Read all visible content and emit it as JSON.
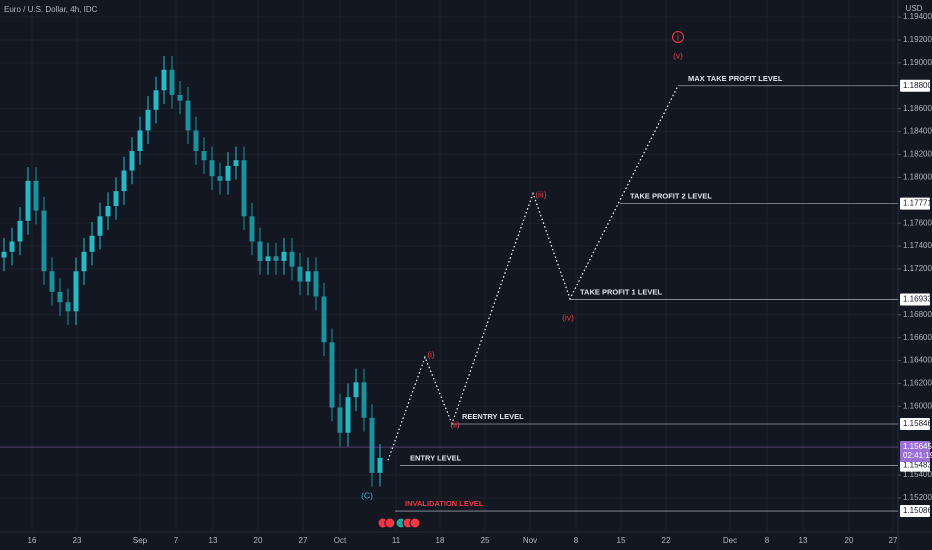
{
  "chart_data": {
    "type": "candlestick",
    "title": "Euro / U.S. Dollar, 4h, IDC",
    "y_axis_label": "USD",
    "ylim": [
      1.14903,
      1.19549
    ],
    "yticks": [
      {
        "value": 1.194,
        "label": "1.19400"
      },
      {
        "value": 1.192,
        "label": "1.19200"
      },
      {
        "value": 1.19,
        "label": "1.19000"
      },
      {
        "value": 1.186,
        "label": "1.18600"
      },
      {
        "value": 1.184,
        "label": "1.18400"
      },
      {
        "value": 1.182,
        "label": "1.18200"
      },
      {
        "value": 1.18,
        "label": "1.18000"
      },
      {
        "value": 1.176,
        "label": "1.17600"
      },
      {
        "value": 1.174,
        "label": "1.17400"
      },
      {
        "value": 1.172,
        "label": "1.17200"
      },
      {
        "value": 1.168,
        "label": "1.16800"
      },
      {
        "value": 1.166,
        "label": "1.16600"
      },
      {
        "value": 1.164,
        "label": "1.16400"
      },
      {
        "value": 1.162,
        "label": "1.16200"
      },
      {
        "value": 1.16,
        "label": "1.16000"
      },
      {
        "value": 1.154,
        "label": "1.15400"
      },
      {
        "value": 1.152,
        "label": "1.15200"
      }
    ],
    "xticks": [
      "16",
      "23",
      "Sep",
      "7",
      "13",
      "20",
      "27",
      "Oct",
      "11",
      "18",
      "25",
      "Nov",
      "8",
      "15",
      "22",
      "Dec",
      "8",
      "13",
      "20",
      "27"
    ],
    "up_color": "#2ab7c6",
    "down_color": "#1e8f9c",
    "grid": true,
    "open": [
      1.173,
      1.1735,
      1.1744,
      1.1762,
      1.1797,
      1.1771,
      1.1718,
      1.17,
      1.1691,
      1.1683,
      1.1718,
      1.1735,
      1.1749,
      1.1766,
      1.1775,
      1.1788,
      1.1806,
      1.1823,
      1.1841,
      1.1859,
      1.1876,
      1.1894,
      1.1872,
      1.1867,
      1.1841,
      1.1823,
      1.1815,
      1.1801,
      1.1797,
      1.181,
      1.1815,
      1.1766,
      1.1744,
      1.1727,
      1.1731,
      1.1727,
      1.1735,
      1.1722,
      1.1709,
      1.1718,
      1.1696,
      1.1656,
      1.1599,
      1.1577,
      1.1608,
      1.1621,
      1.159,
      1.1542
    ],
    "high": [
      1.1747,
      1.1756,
      1.1774,
      1.1809,
      1.1809,
      1.1783,
      1.173,
      1.1712,
      1.1703,
      1.173,
      1.1747,
      1.1761,
      1.1778,
      1.1787,
      1.18,
      1.1818,
      1.1835,
      1.1853,
      1.1871,
      1.1888,
      1.1906,
      1.1906,
      1.1884,
      1.1879,
      1.1853,
      1.1835,
      1.1827,
      1.1813,
      1.1822,
      1.1827,
      1.1827,
      1.1778,
      1.1756,
      1.1743,
      1.1743,
      1.1747,
      1.1747,
      1.1734,
      1.173,
      1.173,
      1.1708,
      1.1668,
      1.1611,
      1.162,
      1.1633,
      1.1633,
      1.1602,
      1.1567
    ],
    "low": [
      1.1718,
      1.1723,
      1.1732,
      1.175,
      1.1759,
      1.1706,
      1.1688,
      1.1679,
      1.1671,
      1.1671,
      1.1706,
      1.1723,
      1.1737,
      1.1754,
      1.1763,
      1.1776,
      1.1794,
      1.1811,
      1.1829,
      1.1847,
      1.1864,
      1.186,
      1.1855,
      1.1829,
      1.1811,
      1.1803,
      1.1789,
      1.1785,
      1.1785,
      1.1798,
      1.1754,
      1.1732,
      1.1715,
      1.1715,
      1.1715,
      1.1715,
      1.171,
      1.1697,
      1.1697,
      1.1684,
      1.1644,
      1.1587,
      1.1565,
      1.1565,
      1.1596,
      1.1578,
      1.153,
      1.153
    ],
    "close": [
      1.1735,
      1.1744,
      1.1762,
      1.1797,
      1.1771,
      1.1718,
      1.17,
      1.1691,
      1.1683,
      1.1718,
      1.1735,
      1.1749,
      1.1766,
      1.1775,
      1.1788,
      1.1806,
      1.1823,
      1.1841,
      1.1859,
      1.1876,
      1.1894,
      1.1872,
      1.1867,
      1.1841,
      1.1823,
      1.1815,
      1.1801,
      1.1797,
      1.181,
      1.1815,
      1.1766,
      1.1744,
      1.1727,
      1.1731,
      1.1727,
      1.1735,
      1.1722,
      1.1709,
      1.1718,
      1.1696,
      1.1656,
      1.1599,
      1.1577,
      1.1608,
      1.1621,
      1.159,
      1.1542,
      1.1555
    ],
    "projection": {
      "color": "#ffffff",
      "values": [
        1.1553,
        1.1643,
        1.1585,
        1.1786,
        1.1694,
        1.188
      ]
    },
    "wave_labels": [
      {
        "text": "(i)",
        "color": "#f23645"
      },
      {
        "text": "(ii)",
        "color": "#f23645"
      },
      {
        "text": "(iii)",
        "color": "#f23645"
      },
      {
        "text": "(iv)",
        "color": "#f23645"
      },
      {
        "text": "(v)",
        "color": "#f23645"
      },
      {
        "text": "i",
        "color": "#f23645"
      },
      {
        "text": "(C)",
        "color": "#2ab7c6"
      }
    ],
    "levels": [
      {
        "name": "MAX TAKE PROFIT LEVEL",
        "value": 1.188,
        "value_label": "1.18800",
        "color": "#e0e3eb"
      },
      {
        "name": "TAKE PROFIT 2 LEVEL",
        "value": 1.17771,
        "value_label": "1.17771",
        "color": "#e0e3eb"
      },
      {
        "name": "TAKE PROFIT 1 LEVEL",
        "value": 1.16933,
        "value_label": "1.16933",
        "color": "#e0e3eb"
      },
      {
        "name": "REENTRY LEVEL",
        "value": 1.15846,
        "value_label": "1.15846",
        "color": "#e0e3eb"
      },
      {
        "name": "ENTRY LEVEL",
        "value": 1.15483,
        "value_label": "1.15483",
        "color": "#e0e3eb"
      },
      {
        "name": "INVALIDATION LEVEL",
        "value": 1.15086,
        "value_label": "1.15086",
        "color": "#f23645"
      }
    ],
    "current_price": {
      "value": 1.15645,
      "value_label": "1.15645",
      "countdown": "02:41:19",
      "color": "#9c6fd6"
    }
  }
}
